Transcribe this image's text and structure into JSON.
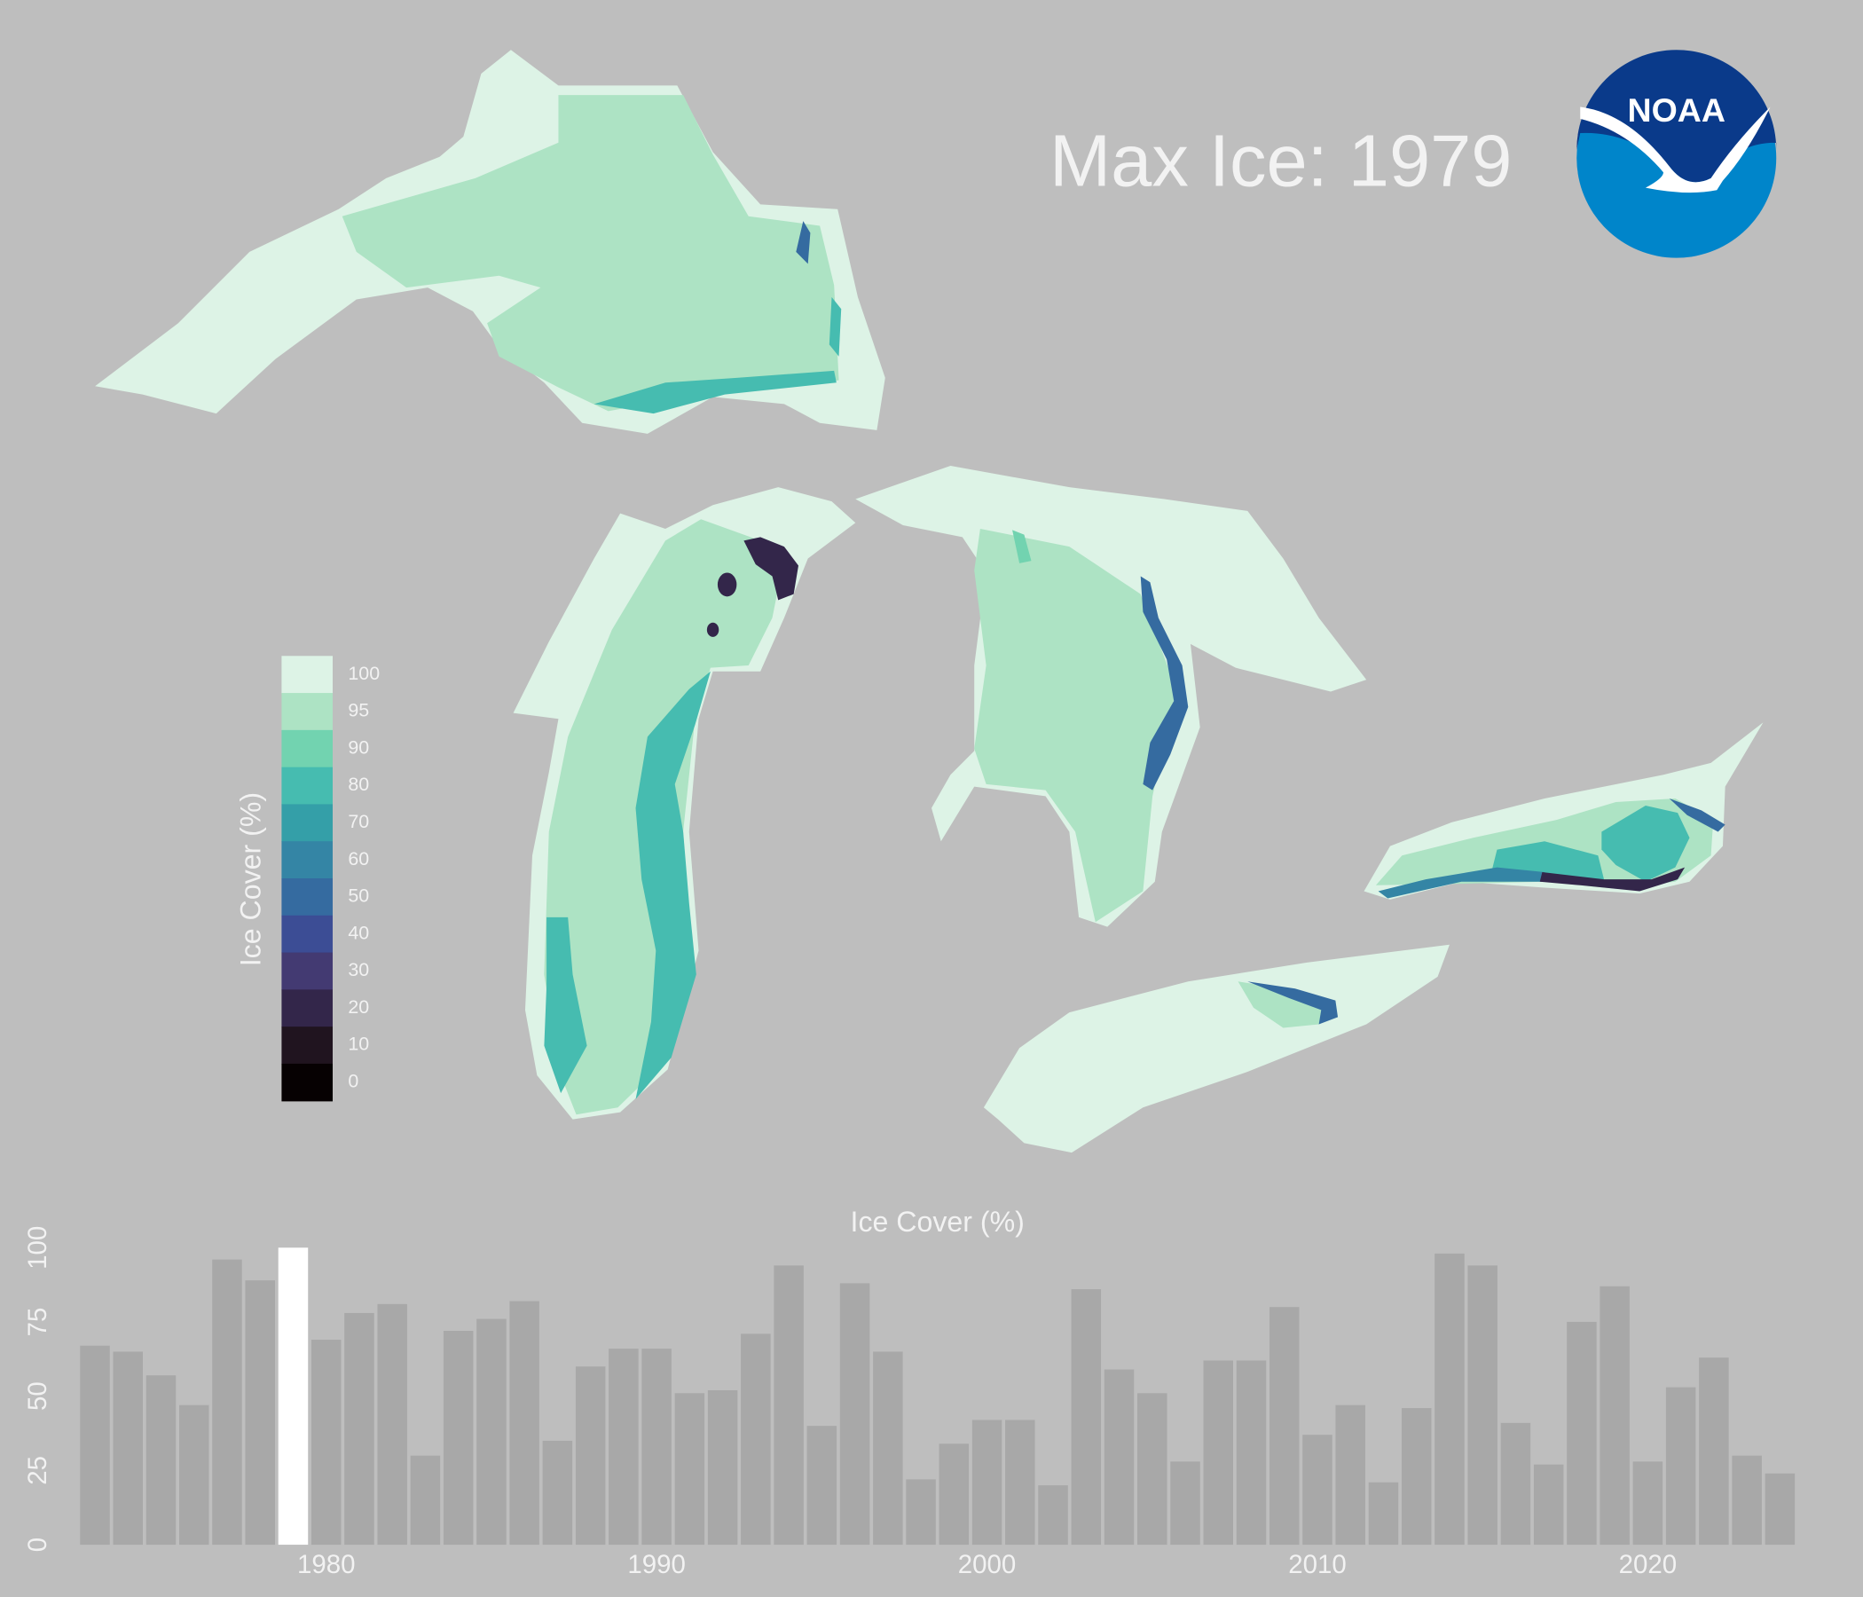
{
  "chart_data": {
    "type": "bar",
    "title": "Max Ice: 1979",
    "logo_text": "NOAA",
    "ylabel": "Ice Cover (%)",
    "x": [
      1973,
      1974,
      1975,
      1976,
      1977,
      1978,
      1979,
      1980,
      1981,
      1982,
      1983,
      1984,
      1985,
      1986,
      1987,
      1988,
      1989,
      1990,
      1991,
      1992,
      1993,
      1994,
      1995,
      1996,
      1997,
      1998,
      1999,
      2000,
      2001,
      2002,
      2003,
      2004,
      2005,
      2006,
      2007,
      2008,
      2009,
      2010,
      2011,
      2012,
      2013,
      2014,
      2015,
      2016,
      2017,
      2018,
      2019,
      2020,
      2021,
      2022,
      2023,
      2024
    ],
    "values": [
      67,
      65,
      57,
      47,
      96,
      89,
      100,
      69,
      78,
      81,
      30,
      72,
      76,
      82,
      35,
      60,
      66,
      66,
      51,
      52,
      71,
      94,
      40,
      88,
      65,
      22,
      34,
      42,
      42,
      20,
      86,
      59,
      51,
      28,
      62,
      62,
      80,
      37,
      47,
      21,
      46,
      98,
      94,
      41,
      27,
      75,
      87,
      28,
      53,
      63,
      30,
      24
    ],
    "color": "#a8a8a8",
    "highlight": 1979,
    "highlight_color": "#ffffff",
    "xlim": [
      1972.5,
      2024.5
    ],
    "xticks": [
      1980,
      1990,
      2000,
      2010,
      2020
    ],
    "ylim": [
      0,
      100
    ],
    "yticks": [
      0,
      25,
      50,
      75,
      100
    ],
    "grid": false,
    "legend": {
      "title": "Ice Cover (%)",
      "levels": [
        {
          "value": 100,
          "color": "#ddf3e6"
        },
        {
          "value": 95,
          "color": "#ade3c4"
        },
        {
          "value": 90,
          "color": "#72d3b0"
        },
        {
          "value": 80,
          "color": "#46bcb0"
        },
        {
          "value": 70,
          "color": "#349fa8"
        },
        {
          "value": 60,
          "color": "#3485a5"
        },
        {
          "value": 50,
          "color": "#356ba0"
        },
        {
          "value": 40,
          "color": "#3c4d95"
        },
        {
          "value": 30,
          "color": "#433a72"
        },
        {
          "value": 20,
          "color": "#33264a"
        },
        {
          "value": 10,
          "color": "#20141f"
        },
        {
          "value": 0,
          "color": "#060102"
        }
      ]
    }
  }
}
